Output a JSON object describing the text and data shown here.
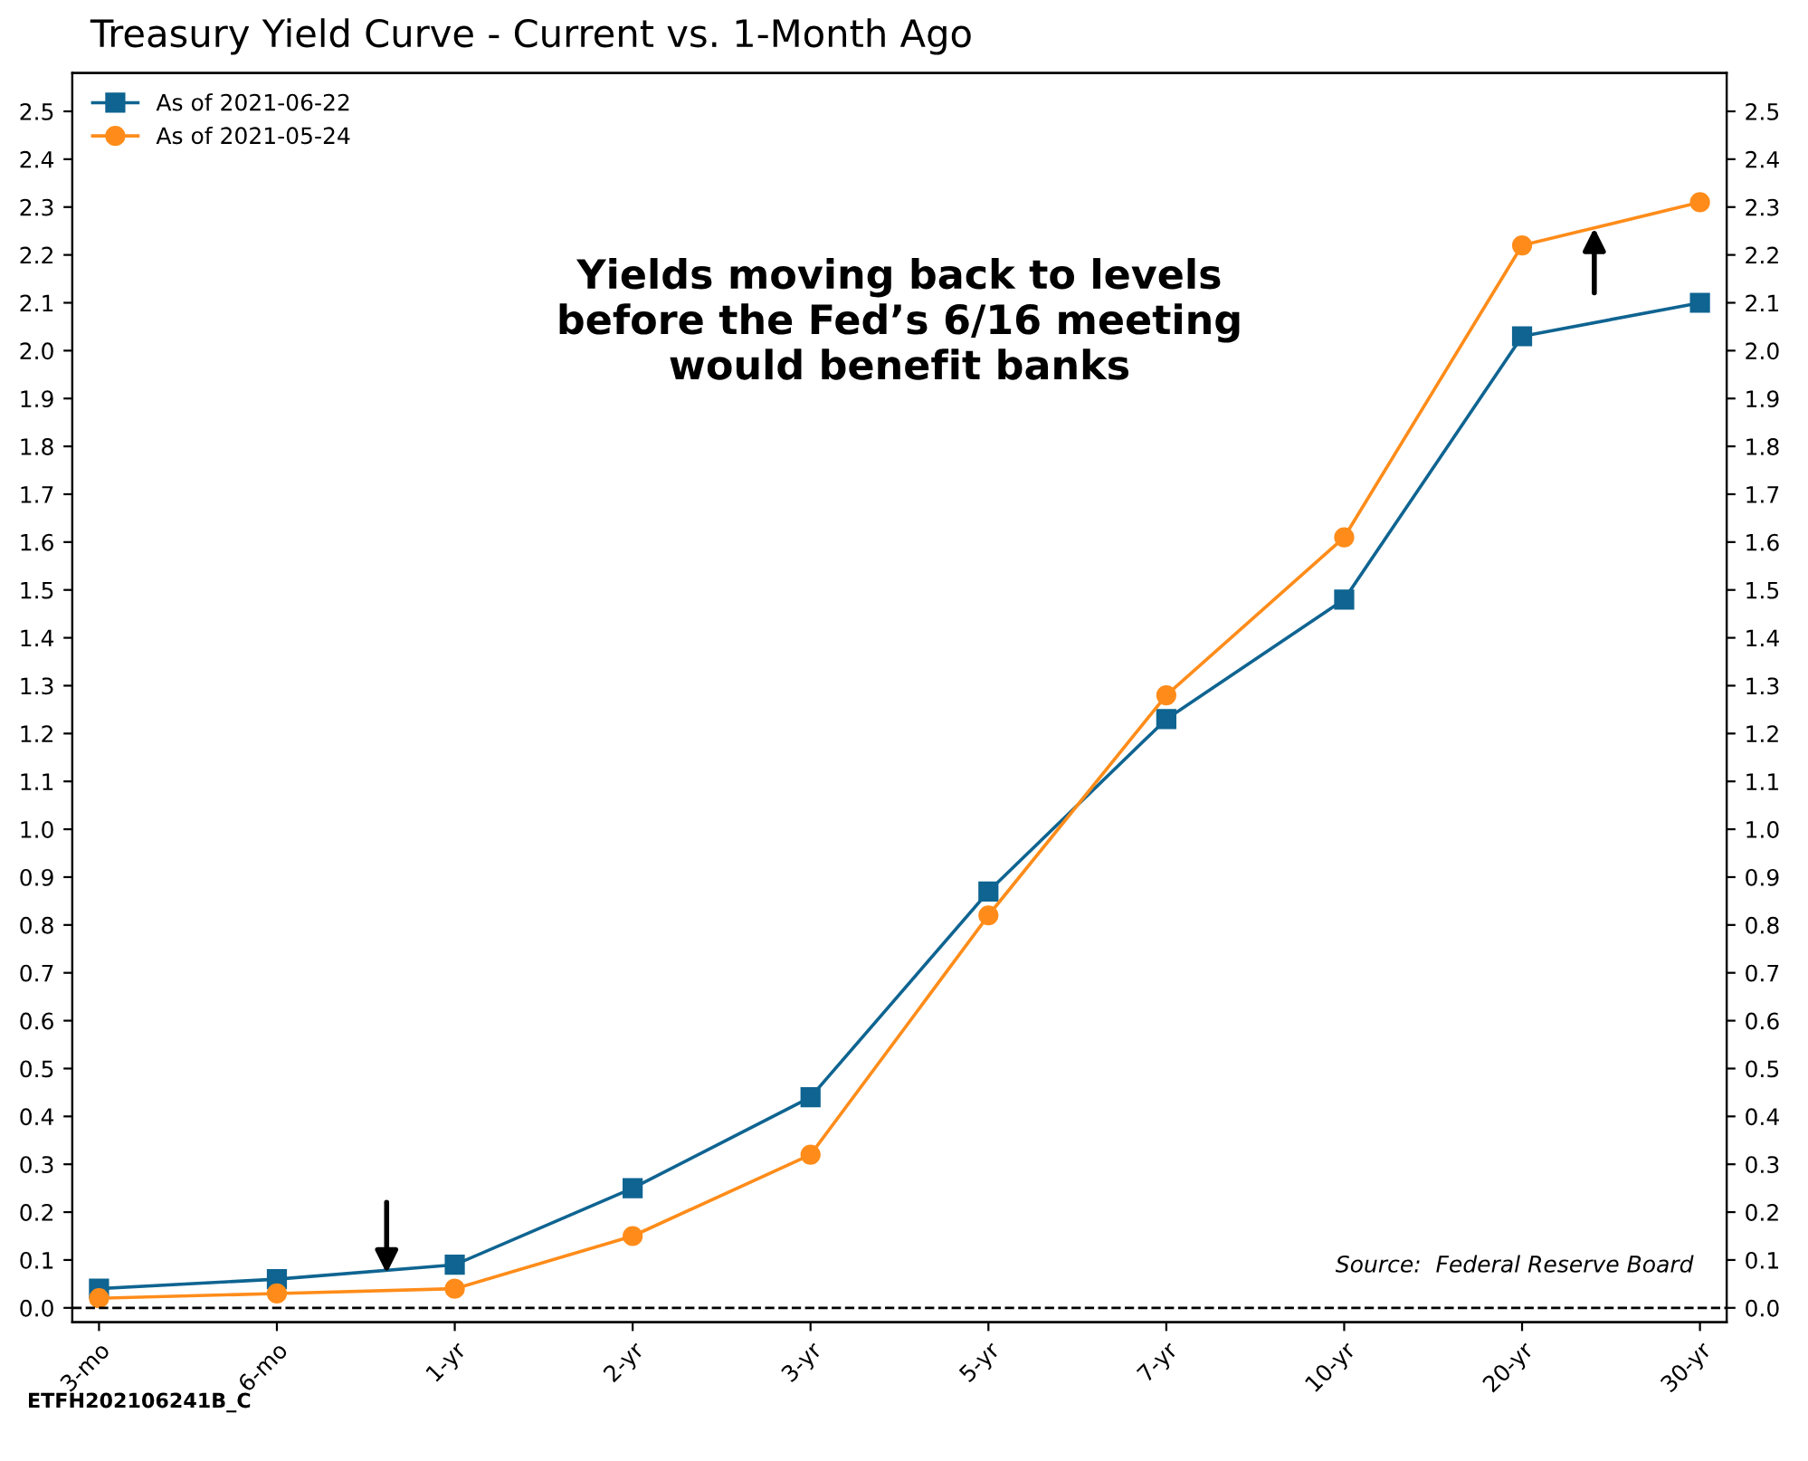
{
  "chart_data": {
    "type": "line",
    "title": "Treasury Yield Curve - Current vs. 1-Month Ago",
    "categories": [
      "3-mo",
      "6-mo",
      "1-yr",
      "2-yr",
      "3-yr",
      "5-yr",
      "7-yr",
      "10-yr",
      "20-yr",
      "30-yr"
    ],
    "series": [
      {
        "name": "As of 2021-06-22",
        "color": "#0f6491",
        "marker": "square",
        "values": [
          0.04,
          0.06,
          0.09,
          0.25,
          0.44,
          0.87,
          1.23,
          1.48,
          2.03,
          2.1
        ]
      },
      {
        "name": "As of 2021-05-24",
        "color": "#ff8c1a",
        "marker": "circle",
        "values": [
          0.02,
          0.03,
          0.04,
          0.15,
          0.32,
          0.82,
          1.28,
          1.61,
          2.22,
          2.31
        ]
      }
    ],
    "ylim": [
      -0.03,
      2.58
    ],
    "yticks": [
      {
        "value": 0,
        "label": "0.0"
      },
      0.1,
      0.2,
      0.3,
      0.4,
      0.5,
      0.6,
      0.7,
      0.8,
      0.9,
      {
        "value": 1,
        "label": "1.0"
      },
      1.1,
      1.2,
      1.3,
      1.4,
      1.5,
      1.6,
      1.7,
      1.8,
      1.9,
      {
        "value": 2,
        "label": "2.0"
      },
      2.1,
      2.2,
      2.3,
      2.4,
      2.5
    ],
    "y2lim": [
      -0.03,
      2.58
    ],
    "y2ticks": [
      {
        "value": 0,
        "label": "0.0"
      },
      0.1,
      0.2,
      0.3,
      0.4,
      0.5,
      0.6,
      0.7,
      0.8,
      0.9,
      {
        "value": 1,
        "label": "1.0"
      },
      1.1,
      1.2,
      1.3,
      1.4,
      1.5,
      1.6,
      1.7,
      1.8,
      1.9,
      {
        "value": 2,
        "label": "2.0"
      },
      2.1,
      2.2,
      2.3,
      2.4,
      2.5
    ],
    "ref_lines": [
      {
        "axis": "y",
        "value": 0,
        "color": "#000000",
        "line_style": "dashed"
      }
    ],
    "grid": false,
    "legend": "top left",
    "line_style": "solid",
    "annotations": [
      "Yields moving back to levels\nbefore the Fed’s 6/16 meeting\nwould benefit banks",
      "Source:  Federal Reserve Board",
      "ETFH202106241B_C"
    ]
  }
}
